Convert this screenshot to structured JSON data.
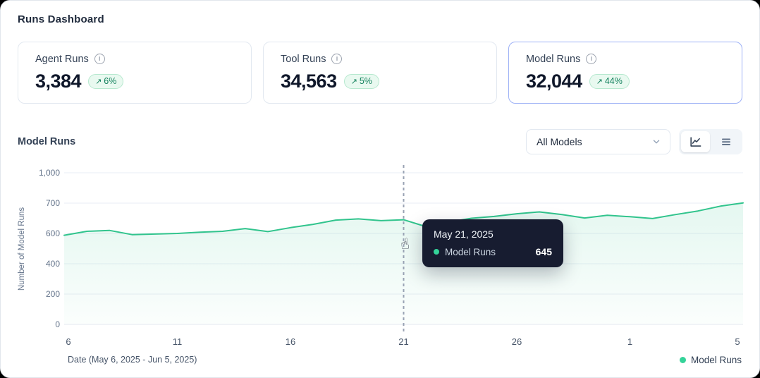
{
  "page": {
    "title": "Runs Dashboard"
  },
  "stat_cards": [
    {
      "label": "Agent Runs",
      "value": "3,384",
      "trend_arrow": "↗",
      "delta": "6%",
      "selected": false
    },
    {
      "label": "Tool Runs",
      "value": "34,563",
      "trend_arrow": "↗",
      "delta": "5%",
      "selected": false
    },
    {
      "label": "Model Runs",
      "value": "32,044",
      "trend_arrow": "↗",
      "delta": "44%",
      "selected": true
    }
  ],
  "section": {
    "title": "Model Runs",
    "model_filter": {
      "selected": "All Models"
    },
    "view_toggle": {
      "active": "chart",
      "options": [
        "chart",
        "table"
      ]
    }
  },
  "icons": {
    "info": "i",
    "trend_up": "↗",
    "chevron_down": "chevron-down",
    "chart_view": "line-chart",
    "table_view": "rows",
    "cursor": "☝"
  },
  "colors": {
    "line_green": "#31c48d",
    "legend_dot": "#34d399",
    "selected_card_border": "#9db1f6",
    "badge_bg": "#e9f9f0",
    "badge_text": "#12805c",
    "tooltip_bg": "#171c30",
    "gridline": "#eaeef5",
    "crosshair": "#98a2b3"
  },
  "chart_data": {
    "type": "line",
    "title": "Model Runs",
    "xlabel": "Date (May 6, 2025 - Jun 5, 2025)",
    "ylabel": "Number of Model Runs",
    "legend": [
      "Model Runs"
    ],
    "legend_position": "bottom-right",
    "grid": "horizontal",
    "y_tick_values": [
      0,
      200,
      400,
      600,
      700,
      1000
    ],
    "y_tick_labels": [
      "0",
      "200",
      "400",
      "600",
      "700",
      "1,000"
    ],
    "x_tick_labels": [
      "6",
      "11",
      "16",
      "21",
      "26",
      "1",
      "5"
    ],
    "dates": [
      "May 6",
      "May 7",
      "May 8",
      "May 9",
      "May 10",
      "May 11",
      "May 12",
      "May 13",
      "May 14",
      "May 15",
      "May 16",
      "May 17",
      "May 18",
      "May 19",
      "May 20",
      "May 21",
      "May 22",
      "May 23",
      "May 24",
      "May 25",
      "May 26",
      "May 27",
      "May 28",
      "May 29",
      "May 30",
      "May 31",
      "Jun 1",
      "Jun 2",
      "Jun 3",
      "Jun 4",
      "Jun 5"
    ],
    "series": [
      {
        "name": "Model Runs",
        "color": "#31c48d",
        "values": [
          588,
          607,
          610,
          592,
          596,
          600,
          604,
          607,
          616,
          606,
          619,
          630,
          644,
          648,
          642,
          645,
          622,
          638,
          650,
          656,
          665,
          671,
          662,
          651,
          660,
          655,
          649,
          662,
          674,
          690,
          702
        ]
      }
    ],
    "tooltip": {
      "date": "May 21, 2025",
      "series": "Model Runs",
      "value": "645",
      "index": 15
    }
  }
}
